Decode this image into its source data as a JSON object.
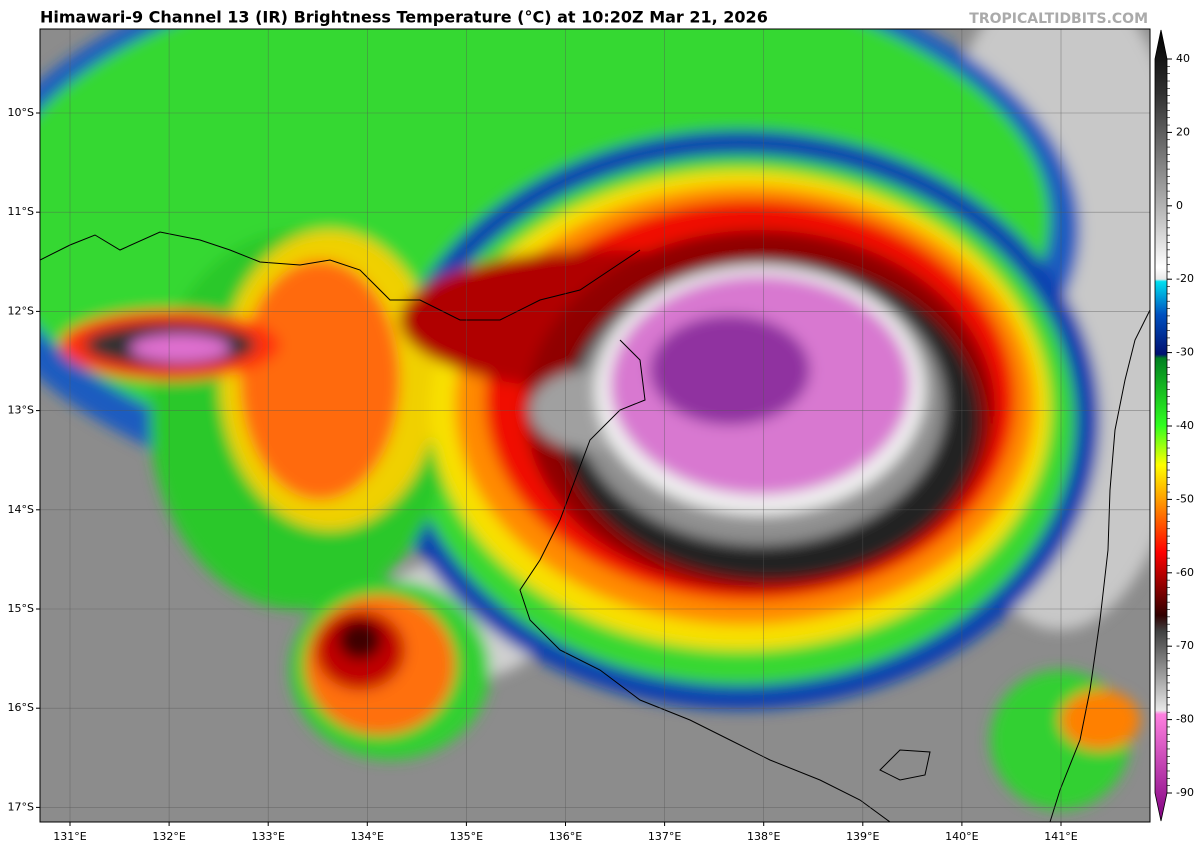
{
  "title": "Himawari-9 Channel 13 (IR) Brightness Temperature (°C) at 10:20Z Mar 21, 2026",
  "watermark": "TROPICALTIDBITS.COM",
  "map": {
    "latitude_labels": [
      "10°S",
      "11°S",
      "12°S",
      "13°S",
      "14°S",
      "15°S",
      "16°S",
      "17°S"
    ],
    "longitude_labels": [
      "131°E",
      "132°E",
      "133°E",
      "134°E",
      "135°E",
      "136°E",
      "137°E",
      "138°E",
      "139°E",
      "140°E",
      "141°E"
    ]
  },
  "colorbar": {
    "ticks": [
      40,
      20,
      0,
      -20,
      -30,
      -40,
      -50,
      -60,
      -70,
      -80,
      -90
    ]
  }
}
